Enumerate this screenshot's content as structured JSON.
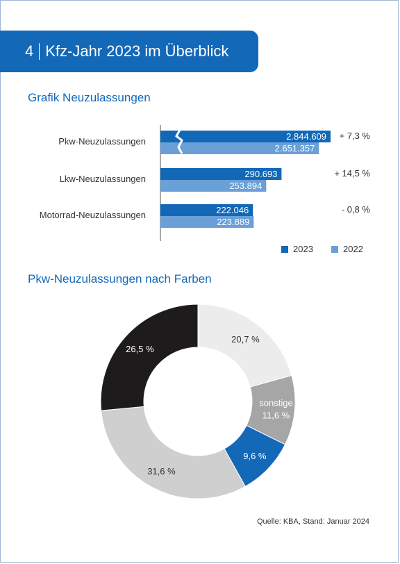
{
  "header": {
    "number": "4",
    "title": "Kfz-Jahr 2023 im Überblick"
  },
  "colors": {
    "accent": "#1468b8",
    "series_2023": "#1268b6",
    "series_2022": "#6a9fd8"
  },
  "chart_data": [
    {
      "type": "bar",
      "orientation": "horizontal",
      "title": "Grafik Neuzulassungen",
      "categories": [
        "Pkw-Neuzulassungen",
        "Lkw-Neuzulassungen",
        "Motorrad-Neuzulassungen"
      ],
      "series": [
        {
          "name": "2023",
          "values": [
            2844609,
            290693,
            222046
          ],
          "labels": [
            "2.844.609",
            "290.693",
            "222.046"
          ]
        },
        {
          "name": "2022",
          "values": [
            2651357,
            253894,
            223889
          ],
          "labels": [
            "2.651.357",
            "253.894",
            "223.889"
          ]
        }
      ],
      "changes": [
        "+ 7,3 %",
        "+ 14,5 %",
        "- 0,8 %"
      ],
      "axis_break_on": "Pkw-Neuzulassungen",
      "legend": {
        "placement": "bottom-right",
        "entries": [
          "2023",
          "2022"
        ]
      }
    },
    {
      "type": "pie",
      "style": "donut",
      "title": "Pkw-Neuzulassungen nach Farben",
      "slices": [
        {
          "label": "",
          "value": 20.7,
          "text": "20,7 %",
          "color": "#ececec",
          "text_color": "#333333"
        },
        {
          "label": "sonstige",
          "value": 11.6,
          "text": "11,6 %",
          "color": "#a6a6a6",
          "text_color": "#ffffff"
        },
        {
          "label": "",
          "value": 9.6,
          "text": "9,6 %",
          "color": "#1468b8",
          "text_color": "#ffffff"
        },
        {
          "label": "",
          "value": 31.6,
          "text": "31,6 %",
          "color": "#cfcfcf",
          "text_color": "#333333"
        },
        {
          "label": "",
          "value": 26.5,
          "text": "26,5 %",
          "color": "#1e1b1c",
          "text_color": "#ffffff"
        }
      ]
    }
  ],
  "source": "Quelle: KBA, Stand: Januar 2024"
}
